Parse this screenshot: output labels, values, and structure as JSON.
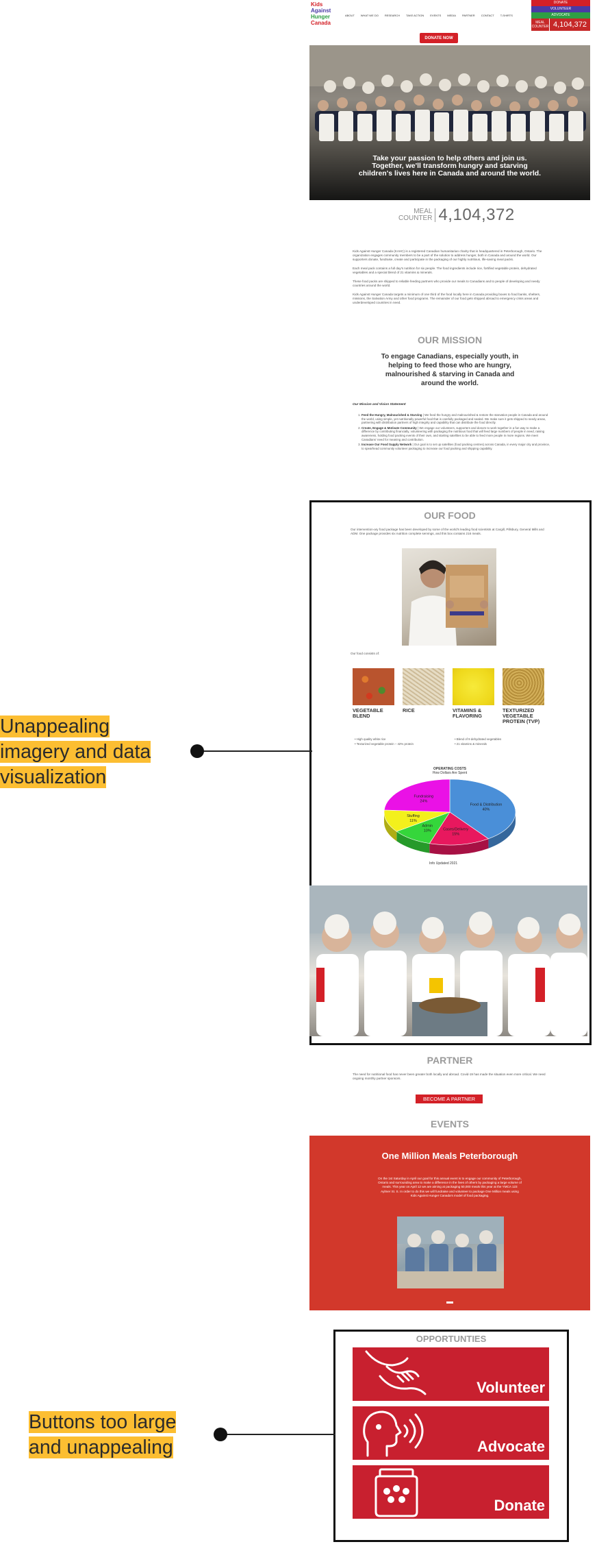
{
  "header": {
    "logo_lines": [
      "Kids",
      "Against",
      "Hunger",
      "Canada"
    ],
    "nav": [
      "ABOUT",
      "WHAT WE DO",
      "RESEARCH",
      "TAKE ACTION",
      "EVENTS",
      "MEDIA",
      "PARTNER",
      "CONTACT",
      "T-SHIRTS"
    ],
    "quick": [
      {
        "label": "DONATE",
        "color": "#d32027"
      },
      {
        "label": "VOLUNTEER",
        "color": "#4a3aa5"
      },
      {
        "label": "ADVOCATE",
        "color": "#2e9e44"
      }
    ],
    "counter_label": "MEAL COUNTER",
    "counter_value": "4,104,372"
  },
  "donate_now": "DONATE NOW",
  "hero": {
    "text": "Take your passion to help others and join us. Together, we'll transform hungry and starving children's lives here in Canada and around the world."
  },
  "meal_counter": {
    "label_1": "MEAL",
    "label_2": "COUNTER",
    "value": "4,104,372"
  },
  "intro": [
    "Kids Against Hunger Canada (KAHC) is a registered Canadian humanitarian charity that is headquartered in Peterborough, Ontario. The organization engages community members to be a part of the solution to address hunger, both in Canada and around the world. Our supporters donate, fundraise, create and participate in the packaging of our highly nutritious, life-saving meal packs.",
    "Each meal pack contains a full day's nutrition for six people. The food ingredients include rice, fortified vegetable protein, dehydrated vegetables and a special blend of 21 vitamins & minerals.",
    "These food packs are shipped to reliable feeding partners who provide our meals to Canadians and to people of developing and needy countries around the world.",
    "Kids Against Hunger Canada targets a minimum of one third of the food locally here in Canada providing boxes to food banks, shelters, missions, the Salvation Army and other food programs. The remainder of our food gets shipped abroad to emergency crisis areas and underdeveloped countries in need."
  ],
  "mission": {
    "heading": "OUR MISSION",
    "statement": "To engage Canadians, especially youth, in helping to feed those who are hungry, malnourished & starving in Canada and around the world.",
    "list_title": "Our Mission and Vision Statement",
    "items": [
      {
        "title": "Feed the Hungry, Malnourished & Starving",
        "text": "| We feed the hungry and malnourished & restore the starvation people in Canada and around the world, using simple, yet nutritionally powerful food that is carefully packaged and sealed. We make sure it gets shipped to needy areas, partnering with distribution partners of high integrity and capability that can distribute the food directly."
      },
      {
        "title": "Create, Engage & Motivate Community",
        "text": "| We engage our volunteers, supporters and donors to work together in a fun way to make a difference by contributing financially, volunteering with packaging the nutritious food that will feed large numbers of people in need, raising awareness, holding food packing events of their own, and starting satellites to be able to feed more people in more regions. We meet Canadians' need for meaning and contribution."
      },
      {
        "title": "Increase Our Food Supply Network",
        "text": "| Our goal is to set up satellites (food packing centres) across Canada, in every major city and province, to spearhead community volunteer packaging to increase our food packing and shipping capability."
      }
    ]
  },
  "food": {
    "heading": "OUR FOOD",
    "intro": "Our intervention-ary food package has been developed by some of the world's leading food scientists at Cargill, Pillsbury, General Mills and ADM. One package provides six nutrition complete servings, and this box contains 216 meals.",
    "contains": "Our food consists of:",
    "ingredients": [
      {
        "name": "VEGETABLE BLEND",
        "color": "#b9542e"
      },
      {
        "name": "RICE",
        "color": "#d8c8a6"
      },
      {
        "name": "VITAMINS & FLAVORING",
        "color": "#f2e022"
      },
      {
        "name": "TEXTURIZED VEGETABLE PROTEIN (TVP)",
        "color": "#c9a44a"
      }
    ],
    "facts": [
      "High quality white rice",
      "Blend of 9 dehydrated vegetables",
      "Texturized vegetable protein – 42% protein",
      "21 vitamins & minerals"
    ],
    "updated": "Info Updated 2021"
  },
  "chart_data": {
    "type": "pie",
    "title": "OPERATING COSTS",
    "subtitle": "How Dollars Are Spent",
    "slices": [
      {
        "label": "Food & Distribution",
        "value": 40,
        "color": "#4a8fd8"
      },
      {
        "label": "Cases/Delivery",
        "value": 15,
        "color": "#e8185e"
      },
      {
        "label": "Admin",
        "value": 10,
        "color": "#35d63b"
      },
      {
        "label": "Stuffing",
        "value": 11,
        "color": "#f3f01c"
      },
      {
        "label": "Fundraising",
        "value": 24,
        "color": "#ea11e6"
      }
    ],
    "slice_value_labels": [
      "40%",
      "15%",
      "10%",
      "11%",
      "24%"
    ]
  },
  "partner": {
    "heading": "PARTNER",
    "text": "The need for nutritional food has never been greater both locally and abroad. Covid-19 has made the situation even more critical. We need ongoing monthly partner sponsors.",
    "button": "BECOME A PARTNER"
  },
  "events": {
    "heading": "EVENTS",
    "title": "One Million Meals Peterborough",
    "desc": "On the 1st Saturday in April our goal for this annual event is to engage our community of Peterborough, Ontario and surrounding area to make a difference in the lives of others by packaging a large volume of meals. This year on April 12 we are aiming at packaging 50,000 meals this year at the YMCA 123 Aylmer St. S. In order to do this we will fundraise and volunteer to package One Million meals using Kids Against Hunger Canada's model of food packaging."
  },
  "opportunities": {
    "heading": "OPPORTUNTIES",
    "buttons": [
      "Volunteer",
      "Advocate",
      "Donate"
    ]
  },
  "annotations": [
    {
      "lines": [
        "Unappealing",
        "imagery and data",
        "visualization"
      ]
    },
    {
      "lines": [
        "Buttons too large",
        "and unappealing"
      ]
    }
  ]
}
